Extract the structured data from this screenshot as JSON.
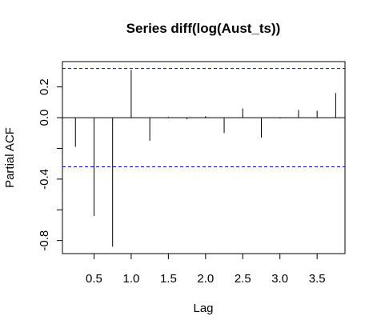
{
  "chart_data": {
    "type": "bar",
    "title": "Series  diff(log(Aust_ts))",
    "xlabel": "Lag",
    "ylabel": "Partial ACF",
    "xlim": [
      0.075,
      3.875
    ],
    "ylim": [
      -0.885,
      0.365
    ],
    "xticks": [
      0.5,
      1.0,
      1.5,
      2.0,
      2.5,
      3.0,
      3.5
    ],
    "xtick_labels": [
      "0.5",
      "1.0",
      "1.5",
      "2.0",
      "2.5",
      "3.0",
      "3.5"
    ],
    "yticks": [
      -0.8,
      -0.6,
      -0.4,
      -0.2,
      0.0,
      0.2
    ],
    "ytick_labels": [
      "-0.8",
      "",
      "-0.4",
      "",
      "0.0",
      "0.2"
    ],
    "confidence_band": [
      -0.32,
      0.32
    ],
    "lags": [
      0.25,
      0.5,
      0.75,
      1.0,
      1.25,
      1.5,
      1.75,
      2.0,
      2.25,
      2.5,
      2.75,
      3.0,
      3.25,
      3.5,
      3.75
    ],
    "values": [
      -0.19,
      -0.64,
      -0.84,
      0.31,
      -0.15,
      0.005,
      -0.01,
      0.01,
      -0.1,
      0.06,
      -0.13,
      -0.005,
      0.05,
      0.045,
      0.16
    ],
    "grid": false,
    "colors": {
      "line": "#000000",
      "band": "#0000cd"
    }
  }
}
